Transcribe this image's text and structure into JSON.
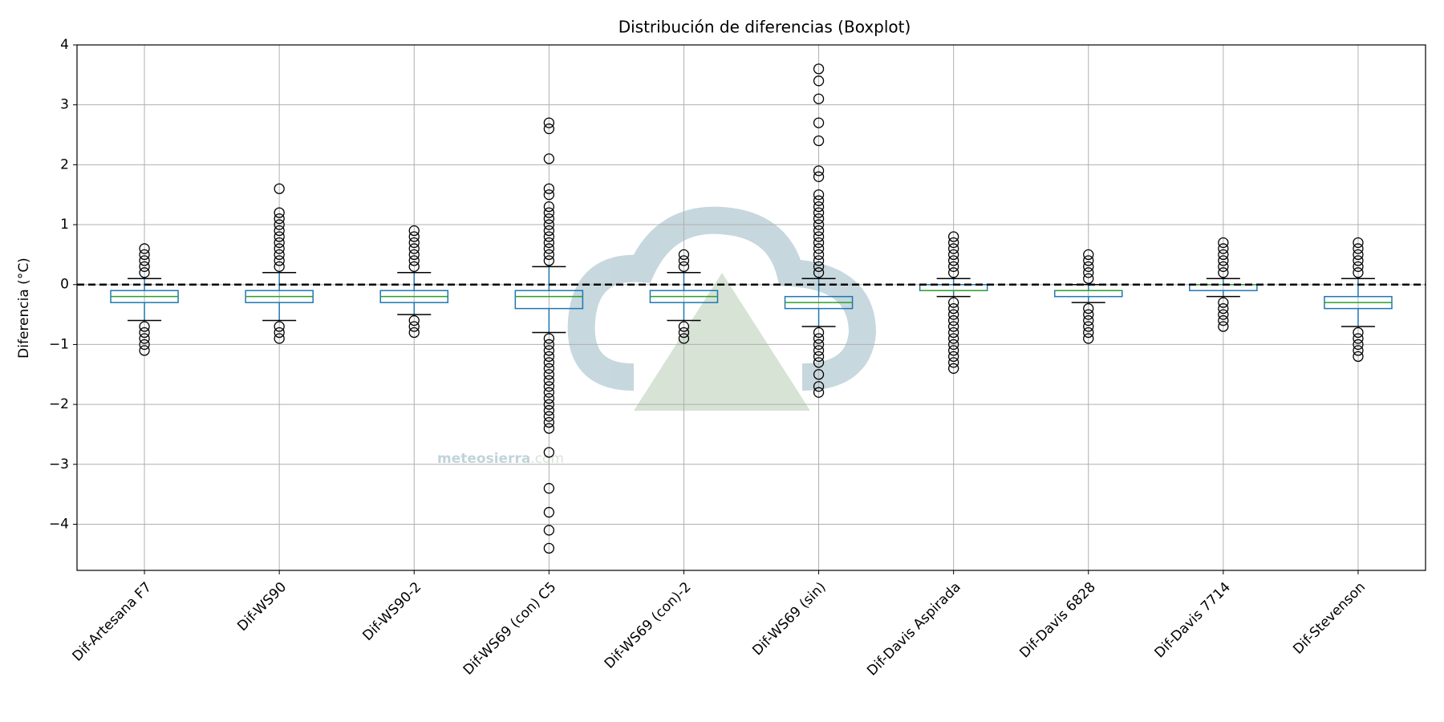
{
  "chart_data": {
    "type": "boxplot",
    "title": "Distribución de diferencias (Boxplot)",
    "y_label": "Diferencia (°C)",
    "watermark": [
      "meteosierra",
      ".com"
    ],
    "categories": [
      "Dif-Artesana F7",
      "Dif-WS90",
      "Dif-WS90-2",
      "Dif-WS69 (con) C5",
      "Dif-WS69 (con)-2",
      "Dif-WS69 (sin)",
      "Dif-Davis Aspirada",
      "Dif-Davis 6828",
      "Dif-Davis 7714",
      "Dif-Stevenson"
    ],
    "boxes": [
      {
        "whisker_low": -0.6,
        "q1": -0.3,
        "median": -0.2,
        "q3": -0.1,
        "whisker_high": 0.1,
        "outliers": [
          0.2,
          0.3,
          0.4,
          0.5,
          0.6,
          -0.7,
          -0.8,
          -0.9,
          -1.0,
          -1.1
        ]
      },
      {
        "whisker_low": -0.6,
        "q1": -0.3,
        "median": -0.2,
        "q3": -0.1,
        "whisker_high": 0.2,
        "outliers": [
          0.3,
          0.4,
          0.5,
          0.6,
          0.7,
          0.8,
          0.9,
          1.0,
          1.1,
          1.2,
          1.6,
          -0.7,
          -0.8,
          -0.9
        ]
      },
      {
        "whisker_low": -0.5,
        "q1": -0.3,
        "median": -0.2,
        "q3": -0.1,
        "whisker_high": 0.2,
        "outliers": [
          0.3,
          0.4,
          0.5,
          0.6,
          0.7,
          0.8,
          0.9,
          -0.6,
          -0.7,
          -0.8
        ]
      },
      {
        "whisker_low": -0.8,
        "q1": -0.4,
        "median": -0.2,
        "q3": -0.1,
        "whisker_high": 0.3,
        "outliers": [
          0.4,
          0.5,
          0.6,
          0.7,
          0.8,
          0.9,
          1.0,
          1.1,
          1.2,
          1.3,
          1.5,
          1.6,
          2.1,
          2.6,
          2.7,
          -0.9,
          -1.0,
          -1.1,
          -1.2,
          -1.3,
          -1.4,
          -1.5,
          -1.6,
          -1.7,
          -1.8,
          -1.9,
          -2.0,
          -2.1,
          -2.2,
          -2.3,
          -2.4,
          -2.8,
          -3.4,
          -3.8,
          -4.1,
          -4.4
        ]
      },
      {
        "whisker_low": -0.6,
        "q1": -0.3,
        "median": -0.2,
        "q3": -0.1,
        "whisker_high": 0.2,
        "outliers": [
          0.3,
          0.4,
          0.5,
          -0.7,
          -0.8,
          -0.9
        ]
      },
      {
        "whisker_low": -0.7,
        "q1": -0.4,
        "median": -0.3,
        "q3": -0.2,
        "whisker_high": 0.1,
        "outliers": [
          0.2,
          0.3,
          0.4,
          0.5,
          0.6,
          0.7,
          0.8,
          0.9,
          1.0,
          1.1,
          1.2,
          1.3,
          1.4,
          1.5,
          1.8,
          1.9,
          2.4,
          2.7,
          3.1,
          3.4,
          3.6,
          -0.8,
          -0.9,
          -1.0,
          -1.1,
          -1.2,
          -1.3,
          -1.5,
          -1.7,
          -1.8
        ]
      },
      {
        "whisker_low": -0.2,
        "q1": -0.1,
        "median": -0.1,
        "q3": 0.0,
        "whisker_high": 0.1,
        "outliers": [
          0.2,
          0.3,
          0.4,
          0.5,
          0.6,
          0.7,
          0.8,
          -0.3,
          -0.4,
          -0.5,
          -0.6,
          -0.7,
          -0.8,
          -0.9,
          -1.0,
          -1.1,
          -1.2,
          -1.3,
          -1.4
        ]
      },
      {
        "whisker_low": -0.3,
        "q1": -0.2,
        "median": -0.1,
        "q3": -0.1,
        "whisker_high": 0.0,
        "outliers": [
          0.1,
          0.2,
          0.3,
          0.4,
          0.5,
          -0.4,
          -0.5,
          -0.6,
          -0.7,
          -0.8,
          -0.9
        ]
      },
      {
        "whisker_low": -0.2,
        "q1": -0.1,
        "median": 0.0,
        "q3": 0.0,
        "whisker_high": 0.1,
        "outliers": [
          0.2,
          0.3,
          0.4,
          0.5,
          0.6,
          0.7,
          -0.3,
          -0.4,
          -0.5,
          -0.6,
          -0.7
        ]
      },
      {
        "whisker_low": -0.7,
        "q1": -0.4,
        "median": -0.3,
        "q3": -0.2,
        "whisker_high": 0.1,
        "outliers": [
          0.2,
          0.3,
          0.4,
          0.5,
          0.6,
          0.7,
          -0.8,
          -0.9,
          -1.0,
          -1.1,
          -1.2
        ]
      }
    ],
    "box_color": "#1f77b4",
    "median_color": "#2ca02c",
    "cap_color": "#000000",
    "outlier_color": "#000000",
    "reference_line": 0,
    "ylim": [
      -4.77,
      4
    ],
    "yticks": [
      {
        "value": -4,
        "label": "−4"
      },
      {
        "value": -3,
        "label": "−3"
      },
      {
        "value": -2,
        "label": "−2"
      },
      {
        "value": -1,
        "label": "−1"
      },
      0,
      1,
      2,
      3,
      4
    ],
    "grid": true
  }
}
